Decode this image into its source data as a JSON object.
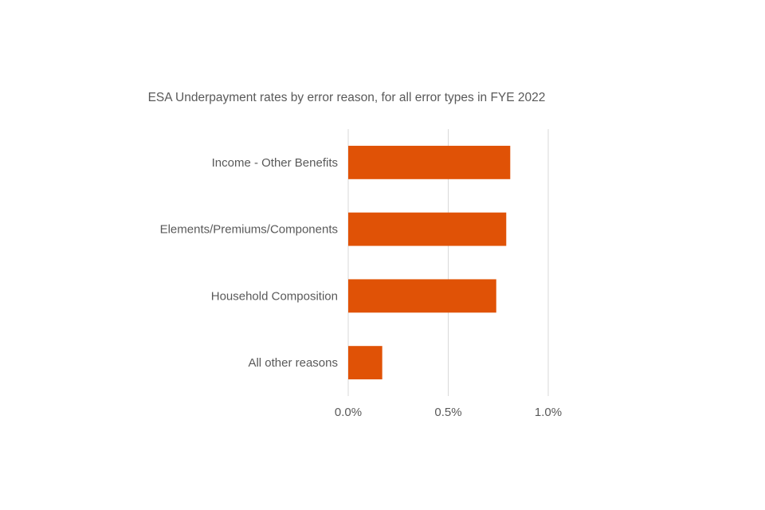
{
  "chart_data": {
    "type": "bar",
    "orientation": "horizontal",
    "title": "ESA Underpayment rates by error reason, for all error types in FYE 2022",
    "categories": [
      "Income - Other Benefits",
      "Elements/Premiums/Components",
      "Household Composition",
      "All other reasons"
    ],
    "values": [
      0.81,
      0.79,
      0.74,
      0.17
    ],
    "value_unit": "%",
    "xlim": [
      0,
      1.0
    ],
    "x_ticks": [
      0,
      0.5,
      1.0
    ],
    "x_tick_labels": [
      "0.0%",
      "0.5%",
      "1.0%"
    ],
    "xlabel": "",
    "ylabel": "",
    "grid": "vertical",
    "legend": "none",
    "bar_color": "#e05206"
  }
}
